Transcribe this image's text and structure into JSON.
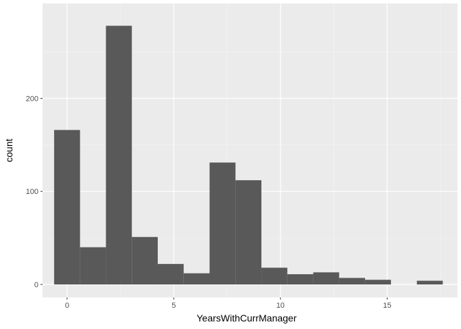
{
  "chart_data": {
    "type": "bar",
    "subtype": "histogram",
    "title": "",
    "xlabel": "YearsWithCurrManager",
    "ylabel": "count",
    "xlim": [
      -1.15,
      18.3
    ],
    "ylim": [
      -14,
      302
    ],
    "x_ticks": [
      0,
      5,
      10,
      15
    ],
    "y_ticks": [
      0,
      100,
      200
    ],
    "grid": true,
    "legend": "none",
    "bin_width": 1.2142857,
    "bins": [
      {
        "x0": -0.6071,
        "x1": 0.6071,
        "count": 166
      },
      {
        "x0": 0.6071,
        "x1": 1.8214,
        "count": 40
      },
      {
        "x0": 1.8214,
        "x1": 3.0357,
        "count": 278
      },
      {
        "x0": 3.0357,
        "x1": 4.25,
        "count": 51
      },
      {
        "x0": 4.25,
        "x1": 5.4643,
        "count": 22
      },
      {
        "x0": 5.4643,
        "x1": 6.6786,
        "count": 12
      },
      {
        "x0": 6.6786,
        "x1": 7.8929,
        "count": 131
      },
      {
        "x0": 7.8929,
        "x1": 9.1071,
        "count": 112
      },
      {
        "x0": 9.1071,
        "x1": 10.3214,
        "count": 18
      },
      {
        "x0": 10.3214,
        "x1": 11.5357,
        "count": 11
      },
      {
        "x0": 11.5357,
        "x1": 12.75,
        "count": 13
      },
      {
        "x0": 12.75,
        "x1": 13.9643,
        "count": 7
      },
      {
        "x0": 13.9643,
        "x1": 15.1786,
        "count": 5
      },
      {
        "x0": 15.1786,
        "x1": 16.3929,
        "count": 0
      },
      {
        "x0": 16.3929,
        "x1": 17.6071,
        "count": 4
      }
    ],
    "colors": {
      "panel_background": "#ebebeb",
      "major_grid": "#ffffff",
      "minor_grid": "#f5f5f5",
      "bar_fill": "#595959",
      "tick_color": "#333333"
    }
  }
}
